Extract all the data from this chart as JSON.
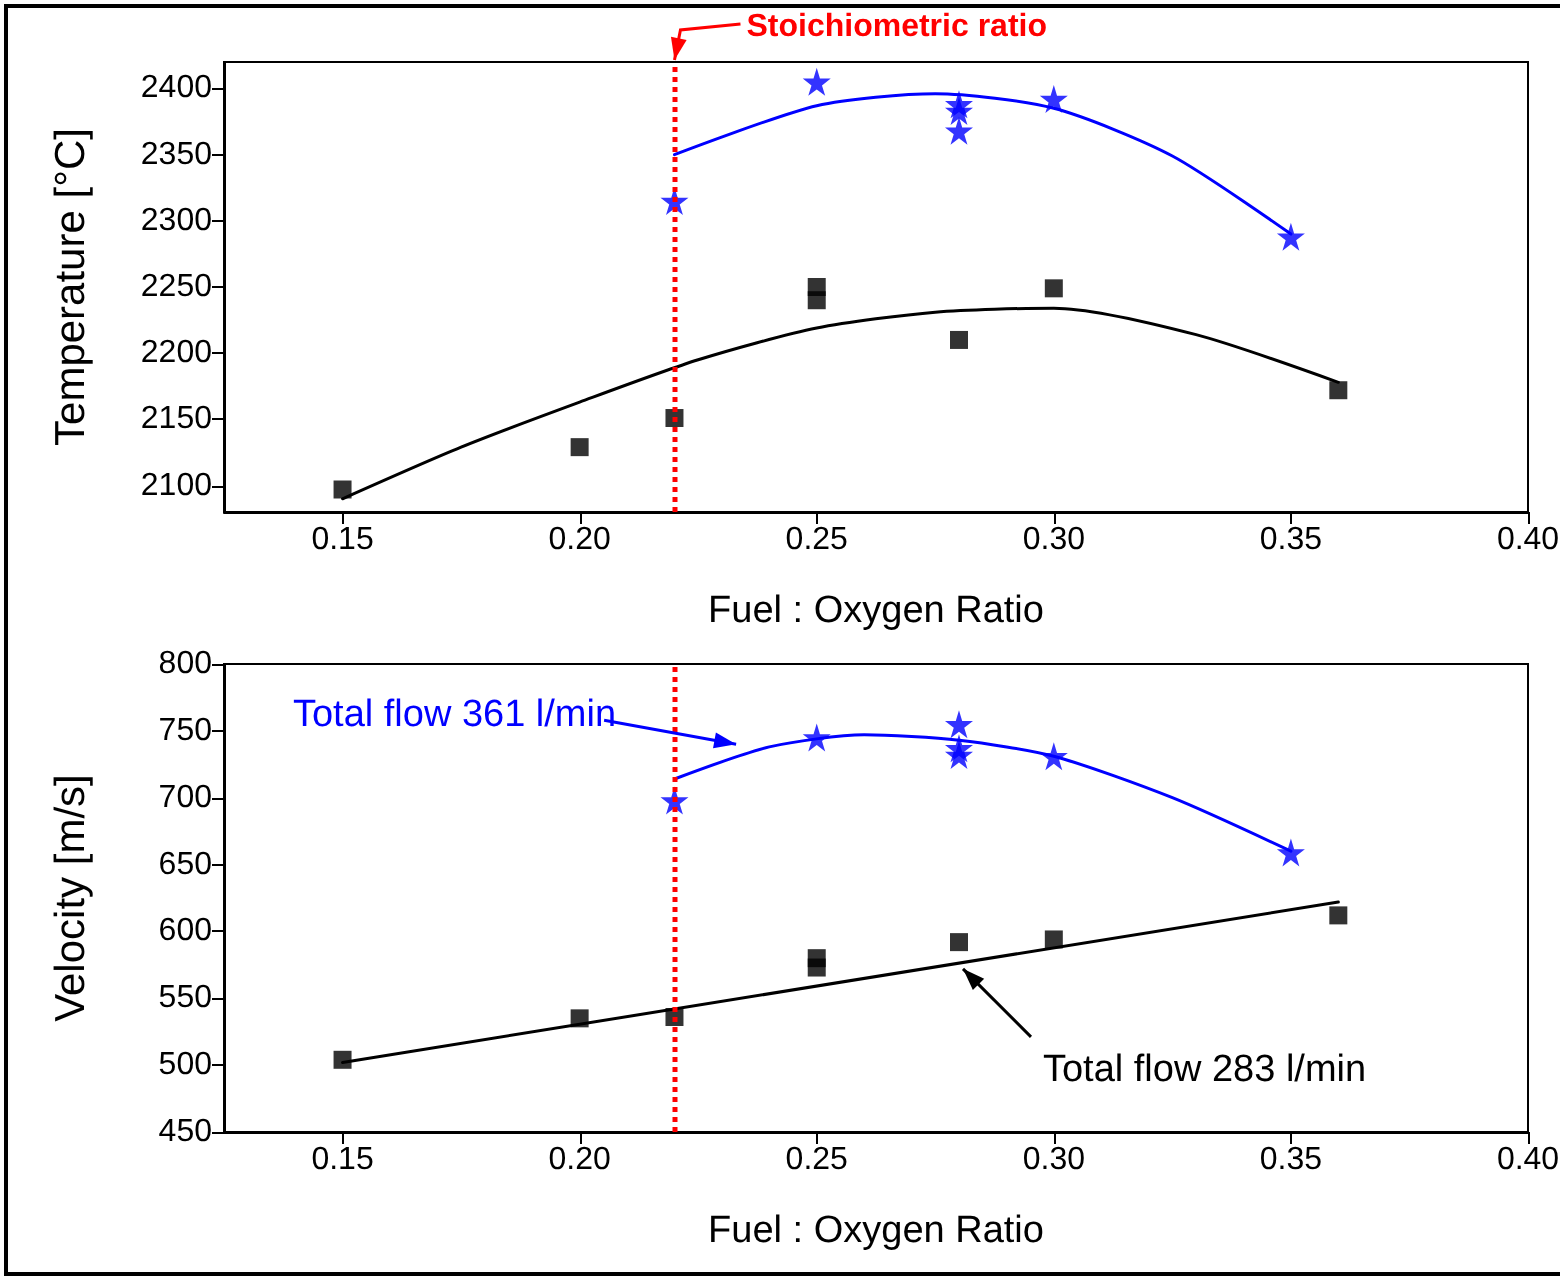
{
  "chart_data": [
    {
      "type": "scatter",
      "xlabel": "Fuel : Oxygen Ratio",
      "ylabel": "Temperature [°C]",
      "xlim": [
        0.125,
        0.4
      ],
      "xticks": [
        {
          "value": 0.15,
          "label": "0.15"
        },
        {
          "value": 0.2,
          "label": "0.20"
        },
        {
          "value": 0.25,
          "label": "0.25"
        },
        {
          "value": 0.3,
          "label": "0.30"
        },
        {
          "value": 0.35,
          "label": "0.35"
        },
        {
          "value": 0.4,
          "label": "0.40"
        }
      ],
      "ylim": [
        2080,
        2420
      ],
      "yticks": [
        2100,
        2150,
        2200,
        2250,
        2300,
        2350,
        2400
      ],
      "grid": false,
      "series": [
        {
          "color": "#000000",
          "marker": "square",
          "x": [
            0.15,
            0.2,
            0.22,
            0.25,
            0.25,
            0.28,
            0.3,
            0.36
          ],
          "values": [
            2097,
            2129,
            2151,
            2250,
            2240,
            2210,
            2249,
            2172
          ]
        },
        {
          "color": "#0000ff",
          "marker": "star",
          "x": [
            0.22,
            0.25,
            0.28,
            0.28,
            0.28,
            0.3,
            0.35
          ],
          "values": [
            2315,
            2405,
            2388,
            2383,
            2368,
            2392,
            2288
          ]
        },
        {
          "type": "line",
          "color": "#000000",
          "marker": "none",
          "x": [
            0.15,
            0.175,
            0.2,
            0.225,
            0.25,
            0.275,
            0.3,
            0.33,
            0.36
          ],
          "values": [
            2090,
            2129,
            2163,
            2195,
            2219,
            2231,
            2234,
            2214,
            2178
          ]
        },
        {
          "type": "line",
          "color": "#0000ff",
          "marker": "none",
          "x": [
            0.22,
            0.25,
            0.275,
            0.3,
            0.325,
            0.35
          ],
          "values": [
            2350,
            2387,
            2396,
            2385,
            2349,
            2290
          ]
        }
      ],
      "ref_lines": [
        {
          "axis": "x",
          "value": 0.22,
          "label": "Stoichiometric ratio",
          "color": "#ff0000",
          "line_style": "dotted"
        }
      ]
    },
    {
      "type": "scatter",
      "xlabel": "Fuel : Oxygen Ratio",
      "ylabel": "Velocity [m/s]",
      "xlim": [
        0.125,
        0.4
      ],
      "xticks": [
        {
          "value": 0.15,
          "label": "0.15"
        },
        {
          "value": 0.2,
          "label": "0.20"
        },
        {
          "value": 0.25,
          "label": "0.25"
        },
        {
          "value": 0.3,
          "label": "0.30"
        },
        {
          "value": 0.35,
          "label": "0.35"
        },
        {
          "value": 0.4,
          "label": "0.40"
        }
      ],
      "ylim": [
        450,
        800
      ],
      "yticks": [
        450,
        500,
        550,
        600,
        650,
        700,
        750,
        800
      ],
      "grid": false,
      "series": [
        {
          "color": "#000000",
          "marker": "square",
          "x": [
            0.15,
            0.2,
            0.22,
            0.25,
            0.25,
            0.28,
            0.3,
            0.36
          ],
          "values": [
            504,
            535,
            536,
            580,
            573,
            592,
            594,
            612
          ]
        },
        {
          "color": "#0000ff",
          "marker": "star",
          "x": [
            0.22,
            0.25,
            0.28,
            0.28,
            0.28,
            0.3,
            0.35
          ],
          "values": [
            698,
            745,
            755,
            737,
            732,
            731,
            659
          ]
        },
        {
          "type": "line",
          "color": "#000000",
          "marker": "none",
          "x": [
            0.15,
            0.36
          ],
          "values": [
            502,
            622
          ]
        },
        {
          "type": "line",
          "color": "#0000ff",
          "marker": "none",
          "x": [
            0.22,
            0.24,
            0.26,
            0.28,
            0.3,
            0.325,
            0.35
          ],
          "values": [
            714,
            738,
            747,
            743,
            731,
            700,
            660
          ]
        }
      ],
      "ref_lines": [
        {
          "axis": "x",
          "value": 0.22,
          "label": null,
          "color": "#ff0000",
          "line_style": "dotted"
        }
      ],
      "annotations": [
        {
          "text": "Total flow 361 l/min",
          "x": 0.233,
          "y": 740
        },
        {
          "text": "Total flow 283 l/min",
          "x": 0.28,
          "y": 575
        }
      ]
    }
  ]
}
